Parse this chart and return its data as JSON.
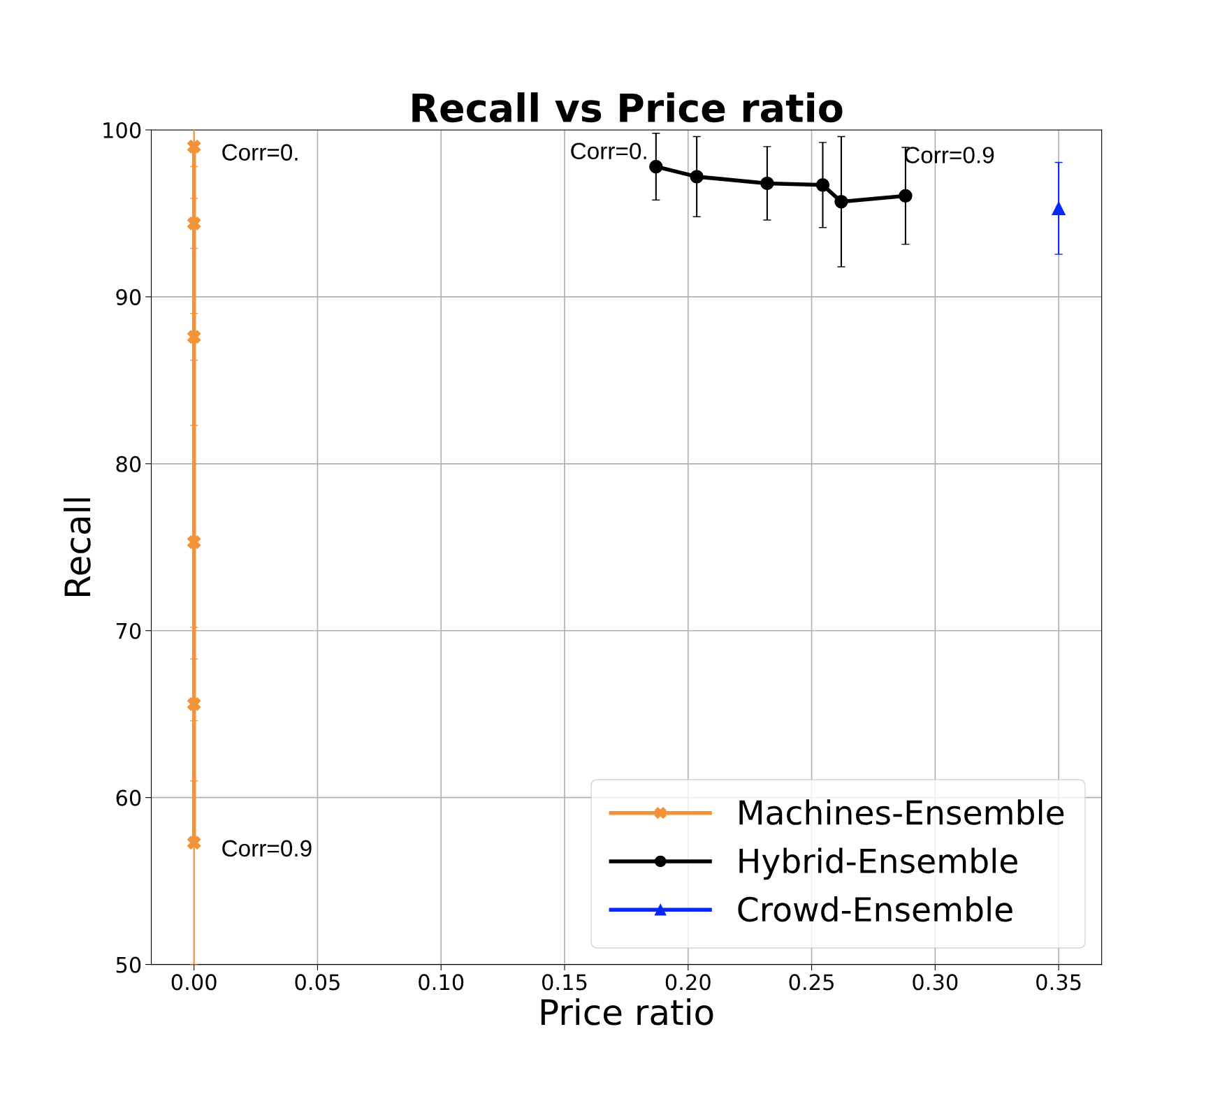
{
  "chart_data": {
    "type": "line",
    "title": "Recall vs Price ratio",
    "xlabel": "Price ratio",
    "ylabel": "Recall",
    "series": [
      {
        "name": "Machines-Ensemble",
        "color": "#f39237",
        "marker": "cross",
        "x": [
          0,
          0,
          0,
          0,
          0,
          0
        ],
        "values": [
          99.0,
          94.4,
          87.6,
          75.3,
          65.6,
          57.3
        ],
        "errors": [
          1.2,
          1.5,
          1.4,
          7.0,
          4.6,
          7.3
        ]
      },
      {
        "name": "Hybrid-Ensemble",
        "color": "#000000",
        "marker": "circle",
        "x": [
          0.187,
          0.2035,
          0.232,
          0.2545,
          0.262,
          0.288
        ],
        "values": [
          97.8,
          97.2,
          96.8,
          96.7,
          95.7,
          96.05
        ],
        "errors": [
          2.0,
          2.4,
          2.2,
          2.55,
          3.9,
          2.9
        ]
      },
      {
        "name": "Crowd-Ensemble",
        "color": "#0a28f5",
        "marker": "triangle",
        "x": [
          0.35
        ],
        "values": [
          95.3
        ],
        "errors": [
          2.75
        ]
      }
    ],
    "annotations": [
      {
        "text": "Corr=0.",
        "x": 0,
        "y": 99.0
      },
      {
        "text": "Corr=0.9",
        "x": 0,
        "y": 57.3
      },
      {
        "text": "Corr=0.",
        "x": 0.187,
        "y": 97.8
      },
      {
        "text": "Corr=0.9",
        "x": 0.288,
        "y": 96.05
      }
    ],
    "xlim": [
      -0.0173,
      0.3674
    ],
    "ylim": [
      50,
      100
    ],
    "xticks": [
      {
        "value": 0,
        "label": "0.00"
      },
      {
        "value": 0.05,
        "label": "0.05"
      },
      {
        "value": 0.1,
        "label": "0.10"
      },
      {
        "value": 0.15,
        "label": "0.15"
      },
      {
        "value": 0.2,
        "label": "0.20"
      },
      {
        "value": 0.25,
        "label": "0.25"
      },
      {
        "value": 0.3,
        "label": "0.30"
      },
      {
        "value": 0.35,
        "label": "0.35"
      }
    ],
    "yticks": [
      50,
      60,
      70,
      80,
      90,
      100
    ],
    "grid": true,
    "legend": "bottom right"
  }
}
